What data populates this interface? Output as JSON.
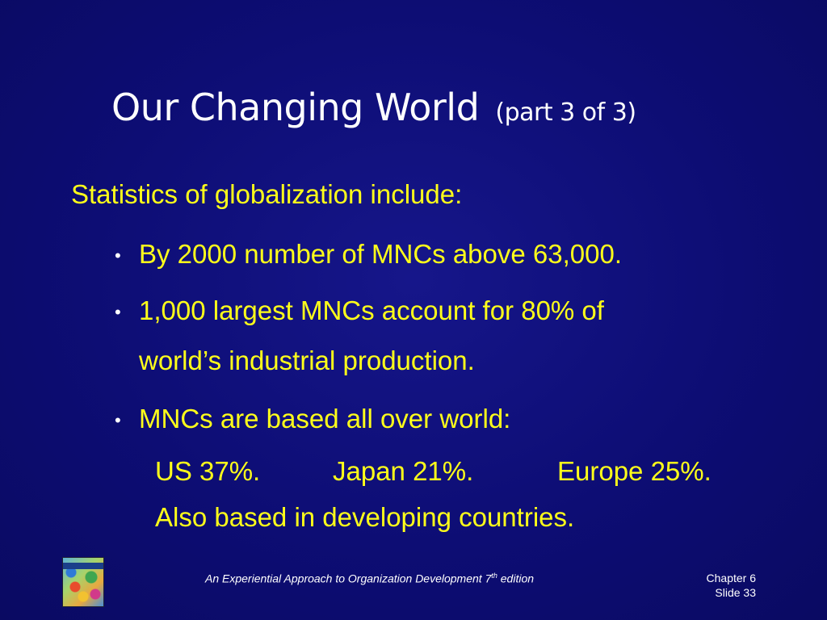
{
  "title": {
    "main": "Our Changing World",
    "sub": "(part 3 of 3)"
  },
  "intro": "Statistics of globalization include:",
  "bullets": {
    "b1": "By 2000 number of MNCs above 63,000.",
    "b2_line1": "1,000 largest MNCs account for 80% of",
    "b2_line2": "world’s industrial production.",
    "b3": "MNCs are based all over world:",
    "bullet_glyph": "•"
  },
  "sub": {
    "us": "US 37%.",
    "japan": "Japan 21%.",
    "europe": "Europe 25%.",
    "also": "Also based in developing countries."
  },
  "footer": {
    "book_pre": "An Experiential Approach to Organization Development 7",
    "book_sup": "th",
    "book_post": " edition",
    "chapter": "Chapter 6",
    "slide": "Slide 33"
  },
  "colors": {
    "background": "#0d0d74",
    "title": "#ffffff",
    "body": "#ffff1a"
  },
  "icons": {
    "book_cover": "book-cover-icon"
  }
}
